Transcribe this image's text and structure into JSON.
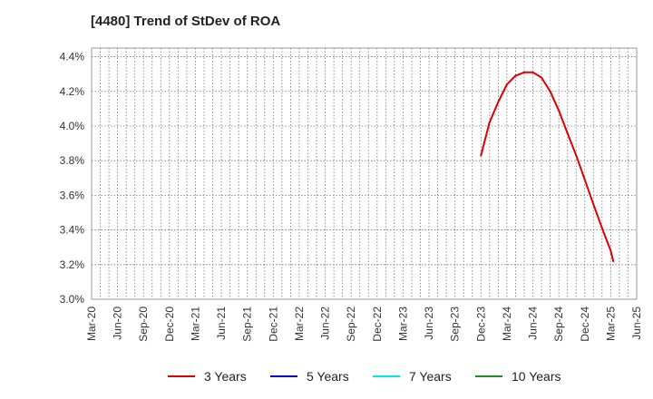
{
  "chart_data": {
    "type": "line",
    "title": "[4480]  Trend of StDev of ROA",
    "xlabel": "",
    "ylabel": "",
    "ylim": [
      3.0,
      4.45
    ],
    "yticks": [
      3.0,
      3.2,
      3.4,
      3.6,
      3.8,
      4.0,
      4.2,
      4.4
    ],
    "ytick_labels": [
      "3.0%",
      "3.2%",
      "3.4%",
      "3.6%",
      "3.8%",
      "4.0%",
      "4.2%",
      "4.4%"
    ],
    "x_categories": [
      "Mar-20",
      "Jun-20",
      "Sep-20",
      "Dec-20",
      "Mar-21",
      "Jun-21",
      "Sep-21",
      "Dec-21",
      "Mar-22",
      "Jun-22",
      "Sep-22",
      "Dec-22",
      "Mar-23",
      "Jun-23",
      "Sep-23",
      "Dec-23",
      "Mar-24",
      "Jun-24",
      "Sep-24",
      "Dec-24",
      "Mar-25",
      "Jun-25"
    ],
    "grid": true,
    "legend_position": "bottom",
    "series": [
      {
        "name": "3 Years",
        "color": "#dd0000",
        "points": [
          [
            15.0,
            3.83
          ],
          [
            15.33,
            4.02
          ],
          [
            15.67,
            4.14
          ],
          [
            16.0,
            4.24
          ],
          [
            16.33,
            4.29
          ],
          [
            16.67,
            4.31
          ],
          [
            17.0,
            4.31
          ],
          [
            17.33,
            4.28
          ],
          [
            17.67,
            4.2
          ],
          [
            18.0,
            4.09
          ],
          [
            18.33,
            3.96
          ],
          [
            18.67,
            3.83
          ],
          [
            19.0,
            3.69
          ],
          [
            19.33,
            3.55
          ],
          [
            19.67,
            3.41
          ],
          [
            20.0,
            3.28
          ],
          [
            20.1,
            3.22
          ]
        ]
      },
      {
        "name": "5 Years",
        "color": "#0000cc",
        "points": []
      },
      {
        "name": "7 Years",
        "color": "#00e5ee",
        "points": []
      },
      {
        "name": "10 Years",
        "color": "#228b22",
        "points": []
      }
    ]
  }
}
